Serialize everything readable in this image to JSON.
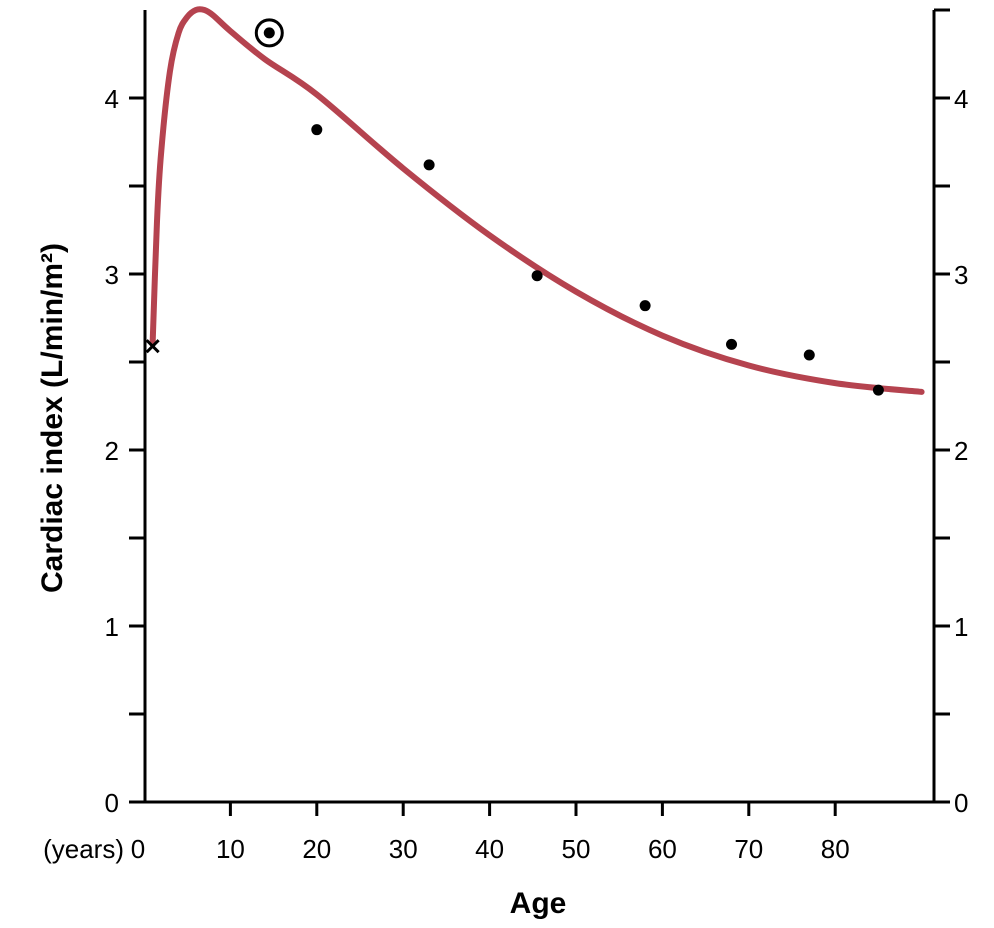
{
  "chart_data": {
    "type": "scatter",
    "title": "",
    "xlabel": "Age",
    "ylabel": "Cardiac index (L/min/m²)",
    "x_unit_label": "(years)",
    "xlim": [
      0,
      90
    ],
    "ylim": [
      0,
      4.5
    ],
    "x_ticks": [
      0,
      10,
      20,
      30,
      40,
      50,
      60,
      70,
      80
    ],
    "x_tick_labels": [
      "0",
      "10",
      "20",
      "30",
      "40",
      "50",
      "60",
      "70",
      "80"
    ],
    "y_major_ticks": [
      0,
      1,
      2,
      3,
      4
    ],
    "y_tick_labels": [
      "0",
      "1",
      "2",
      "3",
      "4"
    ],
    "y_minor_ticks": [
      0.5,
      1.5,
      2.5,
      3.5
    ],
    "right_axis": true,
    "grid": false,
    "legend": "none",
    "colors": {
      "curve": "#b5434f",
      "points": "#000000",
      "axes": "#000000"
    },
    "series": [
      {
        "type": "line",
        "values": [
          [
            1,
            2.6
          ],
          [
            1.5,
            3.3
          ],
          [
            2,
            3.7
          ],
          [
            3,
            4.15
          ],
          [
            4,
            4.37
          ],
          [
            5,
            4.46
          ],
          [
            6,
            4.5
          ],
          [
            7,
            4.5
          ],
          [
            8,
            4.47
          ],
          [
            10,
            4.38
          ],
          [
            14,
            4.22
          ],
          [
            20,
            4.02
          ],
          [
            30,
            3.6
          ],
          [
            40,
            3.22
          ],
          [
            50,
            2.9
          ],
          [
            60,
            2.65
          ],
          [
            70,
            2.48
          ],
          [
            80,
            2.38
          ],
          [
            90,
            2.33
          ]
        ]
      },
      {
        "type": "scatter",
        "marker": "dot",
        "values": [
          [
            20,
            3.82
          ],
          [
            33,
            3.62
          ],
          [
            45.5,
            2.99
          ],
          [
            58,
            2.82
          ],
          [
            68,
            2.6
          ],
          [
            77,
            2.54
          ],
          [
            85,
            2.34
          ]
        ]
      },
      {
        "type": "scatter",
        "marker": "circled-dot",
        "values": [
          [
            14.5,
            4.37
          ]
        ]
      },
      {
        "type": "scatter",
        "marker": "x",
        "values": [
          [
            1,
            2.59
          ]
        ]
      }
    ]
  }
}
